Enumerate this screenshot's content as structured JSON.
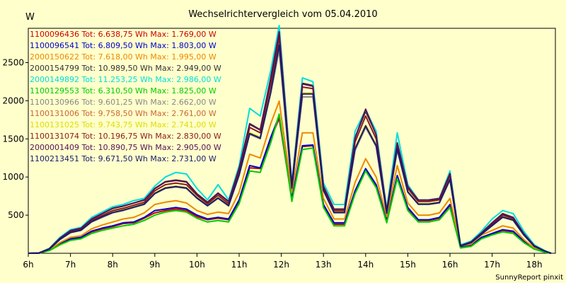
{
  "chart_data": {
    "type": "line",
    "title": "Wechselrichtervergleich vom 05.04.2010",
    "ylabel": "W",
    "footer": "SunnyReport pinxit",
    "xlim": [
      6,
      18.5
    ],
    "ylim": [
      0,
      2950
    ],
    "grid": false,
    "legend_position": "top-left",
    "x_tick_labels": [
      "6h",
      "7h",
      "8h",
      "9h",
      "10h",
      "11h",
      "12h",
      "13h",
      "14h",
      "15h",
      "16h",
      "17h",
      "18h"
    ],
    "y_tick_labels": [
      "500",
      "1000",
      "1500",
      "2000",
      "2500"
    ],
    "x": [
      6,
      6.25,
      6.5,
      6.75,
      7,
      7.25,
      7.5,
      7.75,
      8,
      8.25,
      8.5,
      8.75,
      9,
      9.25,
      9.5,
      9.75,
      10,
      10.25,
      10.5,
      10.75,
      11,
      11.25,
      11.5,
      11.75,
      11.95,
      12.25,
      12.5,
      12.75,
      13,
      13.25,
      13.5,
      13.75,
      14,
      14.25,
      14.5,
      14.75,
      15,
      15.25,
      15.5,
      15.75,
      16,
      16.25,
      16.5,
      16.75,
      17,
      17.25,
      17.5,
      17.75,
      18,
      18.25,
      18.4
    ],
    "series": [
      {
        "name": "1100096436",
        "legend_text": "1100096436 Tot: 6.638,75 Wh Max: 1.769,00 W",
        "color": "#cc0000",
        "values": [
          0,
          0,
          40,
          120,
          180,
          200,
          280,
          320,
          350,
          390,
          400,
          460,
          530,
          560,
          580,
          560,
          480,
          440,
          460,
          440,
          680,
          1120,
          1110,
          1500,
          1769,
          700,
          1400,
          1410,
          620,
          380,
          380,
          800,
          1100,
          880,
          420,
          1000,
          580,
          430,
          430,
          460,
          620,
          80,
          100,
          200,
          250,
          300,
          280,
          150,
          60,
          15,
          0
        ]
      },
      {
        "name": "1100096541",
        "legend_text": "1100096541 Tot: 6.809,50 Wh Max: 1.803,00 W",
        "color": "#0000cc",
        "values": [
          0,
          0,
          45,
          130,
          190,
          210,
          290,
          330,
          360,
          400,
          410,
          470,
          560,
          580,
          600,
          580,
          500,
          450,
          470,
          450,
          700,
          1150,
          1120,
          1520,
          1803,
          720,
          1410,
          1420,
          640,
          400,
          400,
          820,
          1110,
          900,
          430,
          1020,
          600,
          440,
          440,
          470,
          640,
          85,
          105,
          210,
          260,
          310,
          290,
          160,
          65,
          18,
          0
        ]
      },
      {
        "name": "2000150622",
        "legend_text": "2000150622 Tot: 7.618,00 Wh Max: 1.995,00 W",
        "color": "#ee8800",
        "values": [
          0,
          0,
          45,
          140,
          210,
          230,
          320,
          370,
          410,
          450,
          470,
          530,
          640,
          670,
          690,
          660,
          560,
          510,
          540,
          520,
          800,
          1300,
          1250,
          1700,
          1995,
          800,
          1580,
          1580,
          720,
          450,
          450,
          930,
          1240,
          1000,
          480,
          1150,
          660,
          500,
          500,
          530,
          720,
          95,
          120,
          240,
          300,
          360,
          330,
          180,
          70,
          20,
          0
        ]
      },
      {
        "name": "2000154799",
        "legend_text": "2000154799 Tot: 10.989,50 Wh Max: 2.949,00 W",
        "color": "#333333",
        "values": [
          0,
          5,
          60,
          200,
          300,
          330,
          450,
          520,
          590,
          620,
          660,
          700,
          850,
          940,
          960,
          940,
          780,
          670,
          790,
          680,
          1120,
          1700,
          1620,
          2300,
          2949,
          900,
          2230,
          2200,
          880,
          580,
          580,
          1520,
          1860,
          1560,
          560,
          1450,
          880,
          700,
          700,
          720,
          1050,
          100,
          150,
          270,
          400,
          520,
          470,
          260,
          100,
          30,
          0
        ]
      },
      {
        "name": "2000149892",
        "legend_text": "2000149892 Tot: 11.253,25 Wh Max: 2.986,00 W",
        "color": "#00dddd",
        "values": [
          0,
          5,
          65,
          210,
          310,
          340,
          470,
          540,
          610,
          640,
          690,
          720,
          880,
          1000,
          1060,
          1040,
          850,
          700,
          900,
          700,
          1150,
          1900,
          1800,
          2400,
          2986,
          920,
          2300,
          2250,
          920,
          640,
          640,
          1600,
          1880,
          1600,
          580,
          1580,
          900,
          700,
          700,
          720,
          1080,
          110,
          160,
          290,
          450,
          560,
          520,
          290,
          110,
          35,
          0
        ]
      },
      {
        "name": "1100129553",
        "legend_text": "1100129553 Tot: 6.310,50 Wh Max: 1.825,00 W",
        "color": "#00cc00",
        "values": [
          0,
          0,
          35,
          110,
          170,
          190,
          260,
          300,
          330,
          360,
          380,
          430,
          500,
          540,
          560,
          540,
          460,
          410,
          430,
          410,
          650,
          1080,
          1060,
          1450,
          1825,
          680,
          1360,
          1380,
          600,
          360,
          360,
          780,
          1080,
          860,
          400,
          980,
          560,
          410,
          410,
          440,
          600,
          70,
          90,
          190,
          240,
          280,
          260,
          140,
          55,
          12,
          0
        ]
      },
      {
        "name": "1100130966",
        "legend_text": "1100130966 Tot: 9.601,25 Wh Max: 2.662,00 W",
        "color": "#888888",
        "values": [
          0,
          0,
          55,
          180,
          270,
          300,
          410,
          470,
          530,
          560,
          600,
          640,
          780,
          850,
          870,
          850,
          720,
          620,
          720,
          620,
          1020,
          1560,
          1500,
          2100,
          2662,
          850,
          2050,
          2050,
          820,
          530,
          530,
          1350,
          1650,
          1400,
          520,
          1350,
          800,
          640,
          640,
          660,
          960,
          95,
          140,
          250,
          360,
          470,
          430,
          240,
          90,
          28,
          0
        ]
      },
      {
        "name": "1100131006",
        "legend_text": "1100131006 Tot: 9.758,50 Wh Max: 2.761,00 W",
        "color": "#cc6633",
        "values": [
          0,
          0,
          55,
          185,
          275,
          305,
          420,
          480,
          540,
          570,
          610,
          650,
          790,
          860,
          880,
          860,
          730,
          630,
          730,
          630,
          1040,
          1580,
          1520,
          2130,
          2761,
          860,
          2100,
          2100,
          830,
          540,
          540,
          1380,
          1680,
          1420,
          530,
          1380,
          810,
          650,
          650,
          670,
          980,
          95,
          140,
          255,
          370,
          480,
          440,
          245,
          92,
          28,
          0
        ]
      },
      {
        "name": "1100131025",
        "legend_text": "1100131025 Tot: 9.743,75 Wh Max: 2.741,00 W",
        "color": "#dddd00",
        "values": [
          0,
          0,
          55,
          185,
          275,
          305,
          420,
          480,
          540,
          570,
          610,
          650,
          790,
          860,
          880,
          860,
          730,
          630,
          730,
          630,
          1040,
          1580,
          1520,
          2130,
          2741,
          860,
          2100,
          2100,
          830,
          540,
          540,
          1380,
          1680,
          1420,
          530,
          1380,
          810,
          650,
          650,
          670,
          980,
          95,
          140,
          255,
          370,
          480,
          440,
          245,
          92,
          28,
          0
        ]
      },
      {
        "name": "1100131074",
        "legend_text": "1100131074 Tot: 10.196,75 Wh Max: 2.830,00 W",
        "color": "#8b1a1a",
        "values": [
          0,
          5,
          58,
          190,
          285,
          315,
          430,
          495,
          560,
          590,
          630,
          670,
          820,
          900,
          920,
          900,
          760,
          650,
          760,
          650,
          1080,
          1650,
          1580,
          2220,
          2830,
          880,
          2180,
          2160,
          860,
          560,
          560,
          1460,
          1800,
          1500,
          545,
          1420,
          850,
          680,
          680,
          700,
          1020,
          98,
          145,
          262,
          385,
          500,
          455,
          252,
          96,
          30,
          0
        ]
      },
      {
        "name": "2000001409",
        "legend_text": "2000001409 Tot: 10.890,75 Wh Max: 2.905,00 W",
        "color": "#551155",
        "values": [
          0,
          5,
          60,
          198,
          298,
          328,
          448,
          518,
          588,
          618,
          658,
          698,
          848,
          935,
          955,
          935,
          775,
          668,
          785,
          678,
          1115,
          1690,
          1615,
          2290,
          2905,
          895,
          2220,
          2190,
          875,
          578,
          578,
          1510,
          1890,
          1550,
          558,
          1445,
          875,
          698,
          698,
          718,
          1045,
          100,
          148,
          268,
          398,
          515,
          468,
          258,
          99,
          30,
          0
        ]
      },
      {
        "name": "1100213451",
        "legend_text": "1100213451 Tot: 9.671,50 Wh Max: 2.731,00 W",
        "color": "#1a1a6e",
        "values": [
          0,
          0,
          54,
          182,
          272,
          302,
          415,
          478,
          535,
          565,
          605,
          645,
          785,
          855,
          875,
          855,
          725,
          625,
          725,
          625,
          1030,
          1570,
          1510,
          2115,
          2731,
          855,
          2090,
          2090,
          825,
          535,
          535,
          1370,
          1670,
          1410,
          525,
          1370,
          805,
          645,
          645,
          665,
          970,
          94,
          138,
          252,
          365,
          475,
          435,
          242,
          91,
          27,
          0
        ]
      }
    ]
  }
}
